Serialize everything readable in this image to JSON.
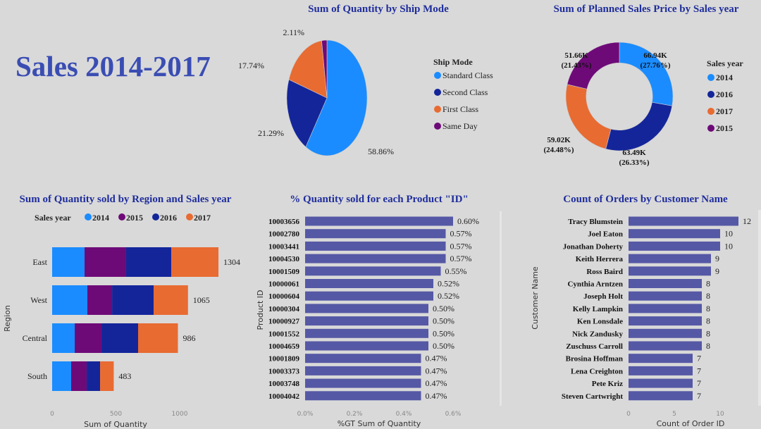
{
  "page_title": "Sales 2014-2017",
  "colors": {
    "c2014": "#1a8cff",
    "c2015": "#6e0a78",
    "c2016": "#14259a",
    "c2017": "#e86b32",
    "bar": "#5558a5",
    "title": "#1f2d9c"
  },
  "chart_data": [
    {
      "type": "pie",
      "title": "Sum of Quantity by Ship Mode",
      "legend_title": "Ship Mode",
      "legend_position": "right",
      "categories": [
        "Standard Class",
        "Second Class",
        "First Class",
        "Same Day"
      ],
      "values": [
        58.86,
        21.29,
        17.74,
        2.11
      ],
      "labels": [
        "58.86%",
        "21.29%",
        "17.74%",
        "2.11%"
      ],
      "colors": [
        "#1a8cff",
        "#14259a",
        "#e86b32",
        "#6e0a78"
      ]
    },
    {
      "type": "pie",
      "donut": true,
      "title": "Sum of Planned Sales Price by Sales year",
      "legend_title": "Sales year",
      "legend_position": "right",
      "categories": [
        "2014",
        "2016",
        "2017",
        "2015"
      ],
      "values": [
        66.94,
        63.49,
        59.02,
        51.66
      ],
      "labels": [
        "66.94K",
        "63.49K",
        "59.02K",
        "51.66K"
      ],
      "pct_labels": [
        "(27.76%)",
        "(26.33%)",
        "(24.48%)",
        "(21.43%)"
      ],
      "colors": [
        "#1a8cff",
        "#14259a",
        "#e86b32",
        "#6e0a78"
      ]
    },
    {
      "type": "bar",
      "orientation": "horizontal",
      "stacked": true,
      "title": "Sum of Quantity sold by Region and Sales year",
      "legend_title": "Sales year",
      "legend_position": "top",
      "categories": [
        "East",
        "West",
        "Central",
        "South"
      ],
      "series": [
        {
          "name": "2014",
          "values": [
            254,
            276,
            177,
            149
          ],
          "color": "#1a8cff"
        },
        {
          "name": "2015",
          "values": [
            326,
            194,
            210,
            122
          ],
          "color": "#6e0a78"
        },
        {
          "name": "2016",
          "values": [
            354,
            326,
            287,
            105
          ],
          "color": "#14259a"
        },
        {
          "name": "2017",
          "values": [
            370,
            269,
            312,
            107
          ],
          "color": "#e86b32"
        }
      ],
      "totals": [
        "1304",
        "1065",
        "986",
        "483"
      ],
      "xlabel": "Sum of Quantity",
      "ylabel": "Region",
      "xlim": [
        0,
        1400
      ],
      "xticks": [
        "0",
        "500",
        "1000"
      ],
      "xtick_values": [
        0,
        500,
        1000
      ]
    },
    {
      "type": "bar",
      "orientation": "horizontal",
      "title": "% Quantity sold for each Product \"ID\"",
      "categories": [
        "10003656",
        "10002780",
        "10003441",
        "10004530",
        "10001509",
        "10000061",
        "10000604",
        "10000304",
        "10000927",
        "10001552",
        "10004659",
        "10001809",
        "10003373",
        "10003748",
        "10004042"
      ],
      "values": [
        0.6,
        0.57,
        0.57,
        0.57,
        0.55,
        0.52,
        0.52,
        0.5,
        0.5,
        0.5,
        0.5,
        0.47,
        0.47,
        0.47,
        0.47
      ],
      "labels": [
        "0.60%",
        "0.57%",
        "0.57%",
        "0.57%",
        "0.55%",
        "0.52%",
        "0.52%",
        "0.50%",
        "0.50%",
        "0.50%",
        "0.50%",
        "0.47%",
        "0.47%",
        "0.47%",
        "0.47%"
      ],
      "xlabel": "%GT Sum of Quantity",
      "ylabel": "Product ID",
      "xlim": [
        0,
        0.6
      ],
      "xticks": [
        "0.0%",
        "0.2%",
        "0.4%",
        "0.6%"
      ],
      "xtick_values": [
        0,
        0.2,
        0.4,
        0.6
      ]
    },
    {
      "type": "bar",
      "orientation": "horizontal",
      "title": "Count of Orders by Customer Name",
      "categories": [
        "Tracy Blumstein",
        "Joel Eaton",
        "Jonathan Doherty",
        "Keith Herrera",
        "Ross Baird",
        "Cynthia Arntzen",
        "Joseph Holt",
        "Kelly Lampkin",
        "Ken Lonsdale",
        "Nick Zandusky",
        "Zuschuss Carroll",
        "Brosina Hoffman",
        "Lena Creighton",
        "Pete Kriz",
        "Steven Cartwright"
      ],
      "values": [
        12,
        10,
        10,
        9,
        9,
        8,
        8,
        8,
        8,
        8,
        8,
        7,
        7,
        7,
        7
      ],
      "xlabel": "Count of Order ID",
      "ylabel": "Customer Name",
      "xlim": [
        0,
        12
      ],
      "xticks": [
        "0",
        "5",
        "10"
      ],
      "xtick_values": [
        0,
        5,
        10
      ]
    }
  ]
}
